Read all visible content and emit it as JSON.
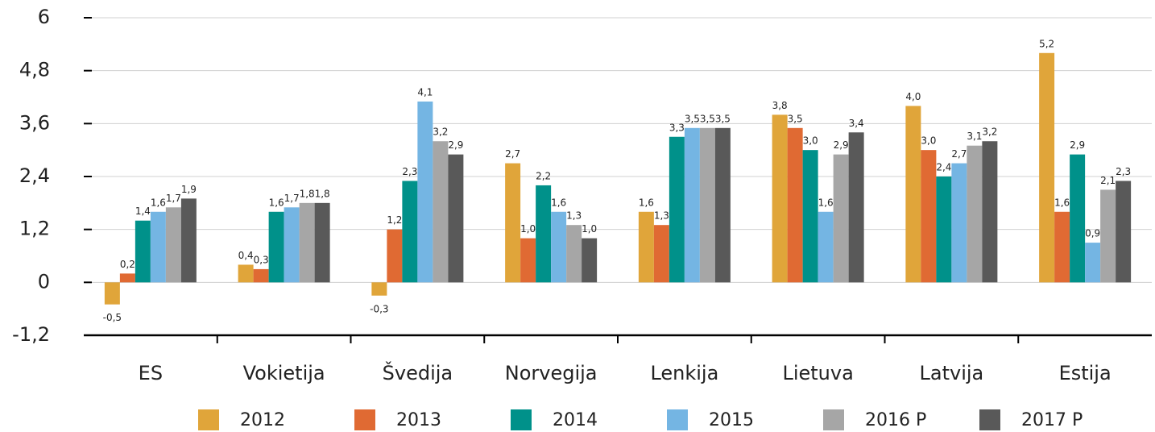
{
  "chart_data": {
    "type": "bar",
    "categories": [
      "ES",
      "Vokietija",
      "Švedija",
      "Norvegija",
      "Lenkija",
      "Lietuva",
      "Latvija",
      "Estija"
    ],
    "series": [
      {
        "name": "2012",
        "color": "#e0a53a",
        "values": [
          -0.5,
          0.4,
          -0.3,
          2.7,
          1.6,
          3.8,
          4.0,
          5.2
        ],
        "value_labels": [
          "-0,5",
          "0,4",
          "-0,3",
          "2,7",
          "1,6",
          "3,8",
          "4,0",
          "5,2"
        ]
      },
      {
        "name": "2013",
        "color": "#e06a33",
        "values": [
          0.2,
          0.3,
          1.2,
          1.0,
          1.3,
          3.5,
          3.0,
          1.6
        ],
        "value_labels": [
          "0,2",
          "0,3",
          "1,2",
          "1,0",
          "1,3",
          "3,5",
          "3,0",
          "1,6"
        ]
      },
      {
        "name": "2014",
        "color": "#00918a",
        "values": [
          1.4,
          1.6,
          2.3,
          2.2,
          3.3,
          3.0,
          2.4,
          2.9
        ],
        "value_labels": [
          "1,4",
          "1,6",
          "2,3",
          "2,2",
          "3,3",
          "3,0",
          "2,4",
          "2,9"
        ]
      },
      {
        "name": "2015",
        "color": "#74b5e3",
        "values": [
          1.6,
          1.7,
          4.1,
          1.6,
          3.5,
          1.6,
          2.7,
          0.9
        ],
        "value_labels": [
          "1,6",
          "1,7",
          "4,1",
          "1,6",
          "3,5",
          "1,6",
          "2,7",
          "0,9"
        ]
      },
      {
        "name": "2016 P",
        "color": "#a6a6a6",
        "values": [
          1.7,
          1.8,
          3.2,
          1.3,
          3.5,
          2.9,
          3.1,
          2.1
        ],
        "value_labels": [
          "1,7",
          "1,8",
          "3,2",
          "1,3",
          "3,5",
          "2,9",
          "3,1",
          "2,1"
        ]
      },
      {
        "name": "2017 P",
        "color": "#595959",
        "values": [
          1.9,
          1.8,
          2.9,
          1.0,
          3.5,
          3.4,
          3.2,
          2.3
        ],
        "value_labels": [
          "1,9",
          "1,8",
          "2,9",
          "1,0",
          "3,5",
          "3,4",
          "3,2",
          "2,3"
        ]
      }
    ],
    "ylim": [
      -1.2,
      6
    ],
    "yticks": [
      {
        "value": -1.2,
        "label": "-1,2"
      },
      0,
      {
        "value": 1.2,
        "label": "1,2"
      },
      {
        "value": 2.4,
        "label": "2,4"
      },
      {
        "value": 3.6,
        "label": "3,6"
      },
      {
        "value": 4.8,
        "label": "4,8"
      },
      6
    ],
    "grid": true,
    "legend": "bottom"
  }
}
